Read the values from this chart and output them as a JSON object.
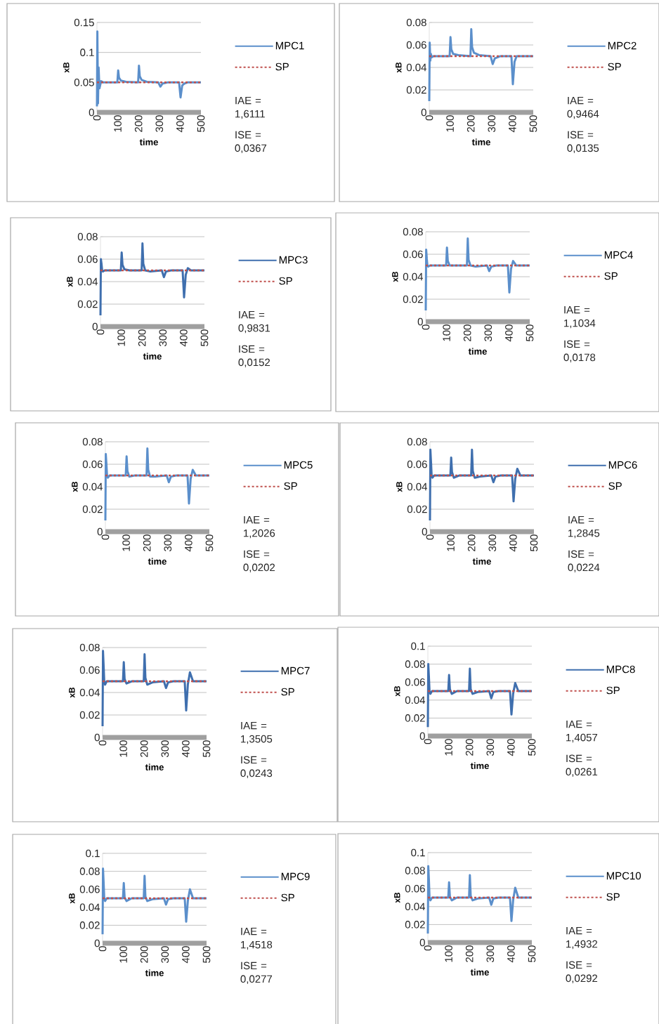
{
  "chart_data": [
    {
      "type": "line",
      "xlabel": "time",
      "ylabel": "xB",
      "xlim": [
        0,
        500
      ],
      "ylim": [
        0,
        0.15
      ],
      "xticks": [
        0,
        100,
        200,
        300,
        400,
        500
      ],
      "yticks": [
        0,
        0.05,
        0.1,
        0.15
      ],
      "grid": "y",
      "legend": "right",
      "annotations": [
        "IAE = 1,6111",
        "ISE = 0,0367"
      ],
      "series": [
        {
          "name": "MPC1",
          "color": "#5b8fcb",
          "x": [
            0,
            2,
            5,
            8,
            12,
            20,
            30,
            50,
            98,
            102,
            106,
            115,
            140,
            198,
            202,
            206,
            215,
            240,
            295,
            305,
            315,
            340,
            395,
            402,
            410,
            420,
            435,
            460,
            500
          ],
          "values": [
            0.01,
            0.135,
            0.015,
            0.075,
            0.04,
            0.052,
            0.05,
            0.05,
            0.05,
            0.07,
            0.058,
            0.053,
            0.051,
            0.05,
            0.078,
            0.06,
            0.054,
            0.051,
            0.05,
            0.043,
            0.048,
            0.05,
            0.05,
            0.025,
            0.045,
            0.048,
            0.05,
            0.05,
            0.05
          ]
        },
        {
          "name": "SP",
          "color": "#c0504d",
          "line_style": "dashed",
          "x": [
            0,
            500
          ],
          "values": [
            0.05,
            0.05
          ]
        }
      ]
    },
    {
      "type": "line",
      "xlabel": "time",
      "ylabel": "xB",
      "xlim": [
        0,
        500
      ],
      "ylim": [
        0,
        0.08
      ],
      "xticks": [
        0,
        100,
        200,
        300,
        400,
        500
      ],
      "yticks": [
        0,
        0.02,
        0.04,
        0.06,
        0.08
      ],
      "grid": "y",
      "legend": "right",
      "annotations": [
        "IAE = 0,9464",
        "ISE = 0,0135"
      ],
      "series": [
        {
          "name": "MPC2",
          "color": "#5b8fcb",
          "x": [
            0,
            2,
            5,
            8,
            12,
            20,
            30,
            50,
            98,
            102,
            106,
            115,
            140,
            198,
            202,
            206,
            215,
            240,
            295,
            305,
            315,
            340,
            395,
            402,
            410,
            420,
            435,
            460,
            500
          ],
          "values": [
            0.01,
            0.062,
            0.046,
            0.052,
            0.049,
            0.05,
            0.05,
            0.05,
            0.05,
            0.067,
            0.056,
            0.052,
            0.051,
            0.05,
            0.074,
            0.058,
            0.053,
            0.051,
            0.05,
            0.043,
            0.048,
            0.05,
            0.05,
            0.025,
            0.045,
            0.05,
            0.05,
            0.05,
            0.05
          ]
        },
        {
          "name": "SP",
          "color": "#c0504d",
          "line_style": "dashed",
          "x": [
            0,
            500
          ],
          "values": [
            0.05,
            0.05
          ]
        }
      ]
    },
    {
      "type": "line",
      "xlabel": "time",
      "ylabel": "xB",
      "xlim": [
        0,
        500
      ],
      "ylim": [
        0,
        0.08
      ],
      "xticks": [
        0,
        100,
        200,
        300,
        400,
        500
      ],
      "yticks": [
        0,
        0.02,
        0.04,
        0.06,
        0.08
      ],
      "grid": "y",
      "legend": "right",
      "annotations": [
        "IAE = 0,9831",
        "ISE = 0,0152"
      ],
      "series": [
        {
          "name": "MPC3",
          "color": "#3f6fae",
          "x": [
            0,
            2,
            5,
            8,
            12,
            20,
            30,
            50,
            98,
            102,
            106,
            115,
            140,
            198,
            202,
            206,
            215,
            240,
            295,
            305,
            315,
            340,
            395,
            402,
            410,
            420,
            435,
            460,
            500
          ],
          "values": [
            0.01,
            0.06,
            0.056,
            0.05,
            0.049,
            0.05,
            0.05,
            0.05,
            0.05,
            0.066,
            0.055,
            0.051,
            0.05,
            0.05,
            0.074,
            0.056,
            0.05,
            0.049,
            0.05,
            0.044,
            0.049,
            0.05,
            0.05,
            0.026,
            0.046,
            0.052,
            0.05,
            0.05,
            0.05
          ]
        },
        {
          "name": "SP",
          "color": "#c0504d",
          "line_style": "dashed",
          "x": [
            0,
            500
          ],
          "values": [
            0.05,
            0.05
          ]
        }
      ]
    },
    {
      "type": "line",
      "xlabel": "time",
      "ylabel": "xB",
      "xlim": [
        0,
        500
      ],
      "ylim": [
        0,
        0.08
      ],
      "xticks": [
        0,
        100,
        200,
        300,
        400,
        500
      ],
      "yticks": [
        0,
        0.02,
        0.04,
        0.06,
        0.08
      ],
      "grid": "y",
      "legend": "right",
      "annotations": [
        "IAE = 1,1034",
        "ISE = 0,0178"
      ],
      "series": [
        {
          "name": "MPC4",
          "color": "#5b8fcb",
          "x": [
            0,
            2,
            5,
            8,
            12,
            20,
            30,
            50,
            98,
            102,
            106,
            115,
            140,
            198,
            202,
            206,
            215,
            240,
            295,
            305,
            315,
            340,
            395,
            402,
            410,
            420,
            435,
            460,
            500
          ],
          "values": [
            0.01,
            0.064,
            0.056,
            0.05,
            0.049,
            0.05,
            0.05,
            0.05,
            0.05,
            0.066,
            0.054,
            0.05,
            0.05,
            0.05,
            0.074,
            0.055,
            0.05,
            0.049,
            0.05,
            0.045,
            0.049,
            0.05,
            0.05,
            0.026,
            0.047,
            0.054,
            0.05,
            0.05,
            0.05
          ]
        },
        {
          "name": "SP",
          "color": "#c0504d",
          "line_style": "dashed",
          "x": [
            0,
            500
          ],
          "values": [
            0.05,
            0.05
          ]
        }
      ]
    },
    {
      "type": "line",
      "xlabel": "time",
      "ylabel": "xB",
      "xlim": [
        0,
        500
      ],
      "ylim": [
        0,
        0.08
      ],
      "xticks": [
        0,
        100,
        200,
        300,
        400,
        500
      ],
      "yticks": [
        0,
        0.02,
        0.04,
        0.06,
        0.08
      ],
      "grid": "y",
      "legend": "right",
      "annotations": [
        "IAE = 1,2026",
        "ISE = 0,0202"
      ],
      "series": [
        {
          "name": "MPC5",
          "color": "#5b8fcb",
          "x": [
            0,
            2,
            5,
            8,
            12,
            20,
            30,
            50,
            98,
            102,
            106,
            115,
            140,
            198,
            202,
            206,
            215,
            240,
            295,
            305,
            315,
            340,
            395,
            402,
            410,
            420,
            435,
            460,
            500
          ],
          "values": [
            0.01,
            0.069,
            0.06,
            0.05,
            0.048,
            0.05,
            0.05,
            0.05,
            0.05,
            0.067,
            0.054,
            0.049,
            0.05,
            0.05,
            0.074,
            0.055,
            0.049,
            0.049,
            0.05,
            0.044,
            0.049,
            0.05,
            0.05,
            0.025,
            0.047,
            0.055,
            0.05,
            0.05,
            0.05
          ]
        },
        {
          "name": "SP",
          "color": "#c0504d",
          "line_style": "dashed",
          "x": [
            0,
            500
          ],
          "values": [
            0.05,
            0.05
          ]
        }
      ]
    },
    {
      "type": "line",
      "xlabel": "time",
      "ylabel": "xB",
      "xlim": [
        0,
        500
      ],
      "ylim": [
        0,
        0.08
      ],
      "xticks": [
        0,
        100,
        200,
        300,
        400,
        500
      ],
      "yticks": [
        0,
        0.02,
        0.04,
        0.06,
        0.08
      ],
      "grid": "y",
      "legend": "right",
      "annotations": [
        "IAE = 1,2845",
        "ISE = 0,0224"
      ],
      "series": [
        {
          "name": "MPC6",
          "color": "#3f6fae",
          "x": [
            0,
            2,
            5,
            8,
            12,
            20,
            30,
            50,
            98,
            102,
            106,
            115,
            140,
            198,
            202,
            206,
            215,
            240,
            295,
            305,
            315,
            340,
            395,
            402,
            410,
            420,
            435,
            460,
            500
          ],
          "values": [
            0.01,
            0.073,
            0.062,
            0.05,
            0.048,
            0.05,
            0.05,
            0.05,
            0.05,
            0.066,
            0.053,
            0.048,
            0.05,
            0.05,
            0.073,
            0.054,
            0.048,
            0.049,
            0.05,
            0.044,
            0.049,
            0.05,
            0.05,
            0.027,
            0.047,
            0.056,
            0.05,
            0.05,
            0.05
          ]
        },
        {
          "name": "SP",
          "color": "#c0504d",
          "line_style": "dashed",
          "x": [
            0,
            500
          ],
          "values": [
            0.05,
            0.05
          ]
        }
      ]
    },
    {
      "type": "line",
      "xlabel": "time",
      "ylabel": "xB",
      "xlim": [
        0,
        500
      ],
      "ylim": [
        0,
        0.08
      ],
      "xticks": [
        0,
        100,
        200,
        300,
        400,
        500
      ],
      "yticks": [
        0,
        0.02,
        0.04,
        0.06,
        0.08
      ],
      "grid": "y",
      "legend": "right",
      "annotations": [
        "IAE = 1,3505",
        "ISE = 0,0243"
      ],
      "series": [
        {
          "name": "MPC7",
          "color": "#3f6fae",
          "x": [
            0,
            2,
            5,
            8,
            12,
            20,
            30,
            50,
            98,
            102,
            106,
            115,
            140,
            198,
            202,
            206,
            215,
            240,
            295,
            305,
            315,
            340,
            395,
            402,
            410,
            420,
            435,
            460,
            500
          ],
          "values": [
            0.01,
            0.077,
            0.064,
            0.05,
            0.047,
            0.05,
            0.05,
            0.05,
            0.05,
            0.067,
            0.052,
            0.048,
            0.05,
            0.05,
            0.074,
            0.053,
            0.047,
            0.049,
            0.05,
            0.044,
            0.049,
            0.05,
            0.05,
            0.024,
            0.047,
            0.058,
            0.05,
            0.05,
            0.05
          ]
        },
        {
          "name": "SP",
          "color": "#c0504d",
          "line_style": "dashed",
          "x": [
            0,
            500
          ],
          "values": [
            0.05,
            0.05
          ]
        }
      ]
    },
    {
      "type": "line",
      "xlabel": "time",
      "ylabel": "xB",
      "xlim": [
        0,
        500
      ],
      "ylim": [
        0,
        0.1
      ],
      "xticks": [
        0,
        100,
        200,
        300,
        400,
        500
      ],
      "yticks": [
        0,
        0.02,
        0.04,
        0.06,
        0.08,
        0.1
      ],
      "grid": "y",
      "legend": "right",
      "annotations": [
        "IAE = 1,4057",
        "ISE = 0,0261"
      ],
      "series": [
        {
          "name": "MPC8",
          "color": "#3f6fae",
          "x": [
            0,
            2,
            5,
            8,
            12,
            20,
            30,
            50,
            98,
            102,
            106,
            115,
            140,
            198,
            202,
            206,
            215,
            240,
            295,
            305,
            315,
            340,
            395,
            402,
            410,
            420,
            435,
            460,
            500
          ],
          "values": [
            0.01,
            0.08,
            0.066,
            0.05,
            0.047,
            0.05,
            0.05,
            0.05,
            0.05,
            0.068,
            0.052,
            0.047,
            0.05,
            0.05,
            0.075,
            0.052,
            0.047,
            0.049,
            0.05,
            0.042,
            0.049,
            0.05,
            0.05,
            0.024,
            0.047,
            0.059,
            0.05,
            0.05,
            0.05
          ]
        },
        {
          "name": "SP",
          "color": "#c0504d",
          "line_style": "dashed",
          "x": [
            0,
            500
          ],
          "values": [
            0.05,
            0.05
          ]
        }
      ]
    },
    {
      "type": "line",
      "xlabel": "time",
      "ylabel": "xB",
      "xlim": [
        0,
        500
      ],
      "ylim": [
        0,
        0.1
      ],
      "xticks": [
        0,
        100,
        200,
        300,
        400,
        500
      ],
      "yticks": [
        0,
        0.02,
        0.04,
        0.06,
        0.08,
        0.1
      ],
      "grid": "y",
      "legend": "right",
      "annotations": [
        "IAE = 1,4518",
        "ISE = 0,0277"
      ],
      "series": [
        {
          "name": "MPC9",
          "color": "#5b8fcb",
          "x": [
            0,
            2,
            5,
            8,
            12,
            20,
            30,
            50,
            98,
            102,
            106,
            115,
            140,
            198,
            202,
            206,
            215,
            240,
            295,
            305,
            315,
            340,
            395,
            402,
            410,
            420,
            435,
            460,
            500
          ],
          "values": [
            0.01,
            0.083,
            0.068,
            0.05,
            0.047,
            0.05,
            0.05,
            0.05,
            0.05,
            0.067,
            0.051,
            0.047,
            0.05,
            0.05,
            0.075,
            0.052,
            0.047,
            0.049,
            0.05,
            0.043,
            0.049,
            0.05,
            0.05,
            0.024,
            0.047,
            0.06,
            0.05,
            0.05,
            0.05
          ]
        },
        {
          "name": "SP",
          "color": "#c0504d",
          "line_style": "dashed",
          "x": [
            0,
            500
          ],
          "values": [
            0.05,
            0.05
          ]
        }
      ]
    },
    {
      "type": "line",
      "xlabel": "time",
      "ylabel": "xB",
      "xlim": [
        0,
        500
      ],
      "ylim": [
        0,
        0.1
      ],
      "xticks": [
        0,
        100,
        200,
        300,
        400,
        500
      ],
      "yticks": [
        0,
        0.02,
        0.04,
        0.06,
        0.08,
        0.1
      ],
      "grid": "y",
      "legend": "right",
      "annotations": [
        "IAE = 1,4932",
        "ISE = 0,0292"
      ],
      "series": [
        {
          "name": "MPC10",
          "color": "#5b8fcb",
          "x": [
            0,
            2,
            5,
            8,
            12,
            20,
            30,
            50,
            98,
            102,
            106,
            115,
            140,
            198,
            202,
            206,
            215,
            240,
            295,
            305,
            315,
            340,
            395,
            402,
            410,
            420,
            435,
            460,
            500
          ],
          "values": [
            0.01,
            0.085,
            0.07,
            0.05,
            0.047,
            0.05,
            0.05,
            0.05,
            0.05,
            0.067,
            0.051,
            0.047,
            0.05,
            0.05,
            0.075,
            0.052,
            0.047,
            0.049,
            0.05,
            0.042,
            0.049,
            0.05,
            0.05,
            0.024,
            0.047,
            0.061,
            0.05,
            0.05,
            0.05
          ]
        },
        {
          "name": "SP",
          "color": "#c0504d",
          "line_style": "dashed",
          "x": [
            0,
            500
          ],
          "values": [
            0.05,
            0.05
          ]
        }
      ]
    }
  ]
}
